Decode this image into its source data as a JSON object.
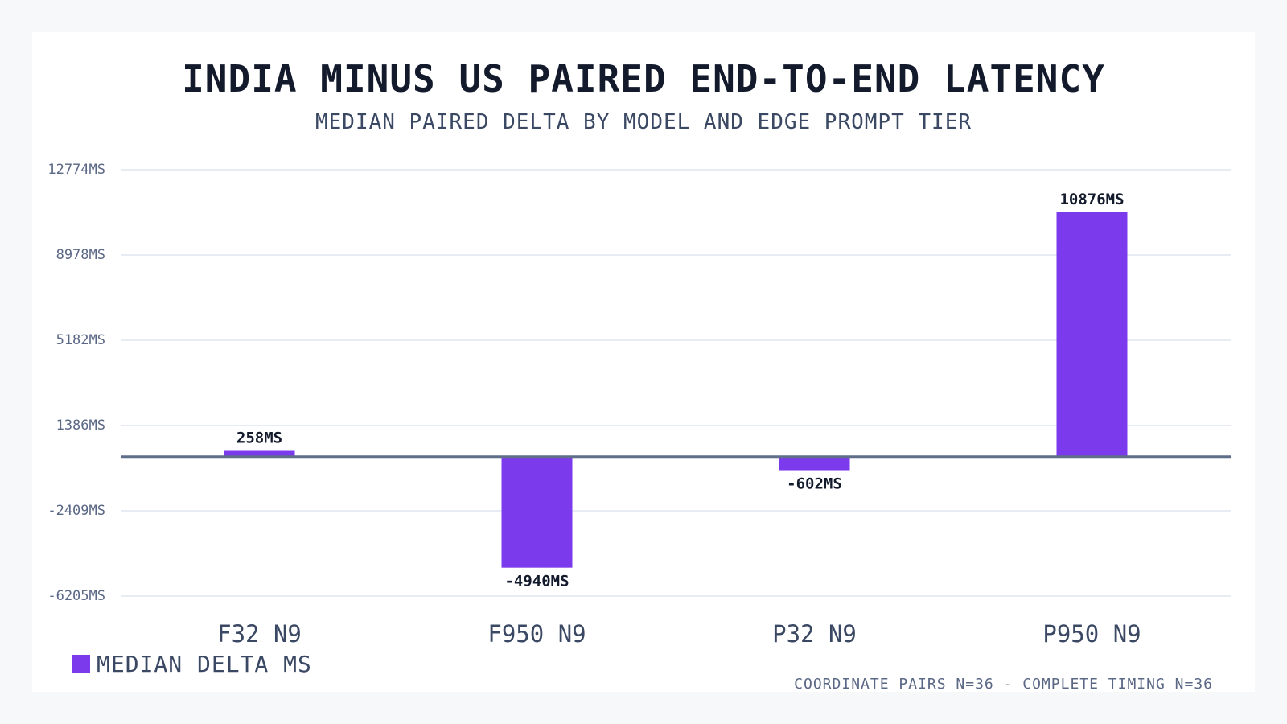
{
  "title": "India minus US paired end-to-end latency",
  "subtitle": "Median paired delta by model and edge prompt tier",
  "footnote": "Coordinate pairs n=36 - complete timing n=36",
  "colors": {
    "bar": "#7c3aed",
    "grid": "#dfe5f0",
    "zero_line": "#5f6f8a",
    "tick_text": "#5a6785",
    "category_text": "#3a4863",
    "value_label": "#121a2c"
  },
  "chart_data": {
    "type": "bar",
    "categories": [
      "F32 N9",
      "F950 N9",
      "P32 N9",
      "P950 N9"
    ],
    "series": [
      {
        "name": "median delta ms",
        "values": [
          258,
          -4940,
          -602,
          10876
        ]
      }
    ],
    "value_labels": [
      "258ms",
      "-4940ms",
      "-602ms",
      "10876ms"
    ],
    "yticks": [
      12774,
      8978,
      5182,
      1386,
      -2409,
      -6205
    ],
    "ytick_labels": [
      "12774ms",
      "8978ms",
      "5182ms",
      "1386ms",
      "-2409ms",
      "-6205ms"
    ],
    "ylim": [
      -6205,
      12774
    ],
    "grid": true,
    "legend_position": "bottom-left",
    "title": "India minus US paired end-to-end latency",
    "subtitle": "Median paired delta by model and edge prompt tier",
    "xlabel": "",
    "ylabel": ""
  }
}
